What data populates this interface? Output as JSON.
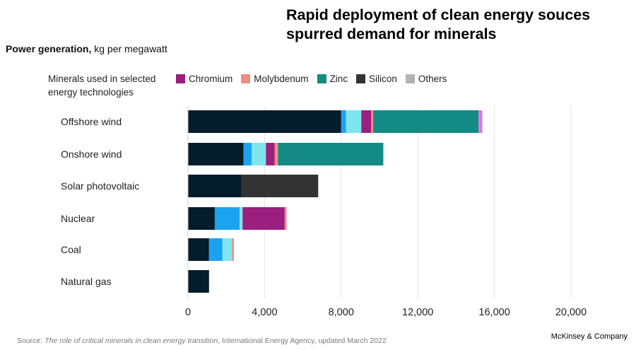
{
  "title": "Rapid deployment of clean energy souces spurred demand for minerals",
  "subtitle_bold": "Power generation,",
  "subtitle_rest": " kg per megawatt",
  "legend_title": "Minerals used in selected energy technologies",
  "legend": [
    {
      "name": "Chromium",
      "color": "#9b1f7e"
    },
    {
      "name": "Molybdenum",
      "color": "#f28b86"
    },
    {
      "name": "Zinc",
      "color": "#138a84"
    },
    {
      "name": "Silicon",
      "color": "#333333"
    },
    {
      "name": "Others",
      "color": "#b3b3b3"
    }
  ],
  "source_prefix": "Source: ",
  "source_title": "The role of critical minerals in clean energy transition",
  "source_rest": ", International Energy Agency, updated March 2022",
  "brand": "McKinsey & Company",
  "chart_data": {
    "type": "bar",
    "orientation": "horizontal",
    "stacked": true,
    "xlim": [
      0,
      20000
    ],
    "x_ticks": [
      0,
      4000,
      8000,
      12000,
      16000,
      20000
    ],
    "x_tick_labels": [
      "0",
      "4,000",
      "8,000",
      "12,000",
      "16,000",
      "20,000"
    ],
    "grid": "vertical",
    "categories": [
      "Offshore wind",
      "Onshore wind",
      "Solar photovoltaic",
      "Nuclear",
      "Coal",
      "Natural gas"
    ],
    "series": [
      {
        "color": "#051c2c",
        "values": [
          8000,
          2900,
          2800,
          1400,
          1100,
          1100
        ]
      },
      {
        "color": "#1ba3f0",
        "values": [
          250,
          420,
          0,
          1300,
          700,
          0
        ]
      },
      {
        "color": "#7ee6ec",
        "values": [
          800,
          750,
          0,
          150,
          500,
          0
        ]
      },
      {
        "name": "Chromium",
        "color": "#9b1f7e",
        "values": [
          520,
          450,
          0,
          2200,
          0,
          0
        ]
      },
      {
        "name": "Molybdenum",
        "color": "#f28b86",
        "values": [
          100,
          180,
          0,
          100,
          100,
          0
        ]
      },
      {
        "name": "Zinc",
        "color": "#138a84",
        "values": [
          5500,
          5500,
          0,
          0,
          0,
          0
        ]
      },
      {
        "name": "Silicon",
        "color": "#333333",
        "values": [
          0,
          0,
          4000,
          0,
          0,
          0
        ]
      },
      {
        "color": "#d77bdb",
        "values": [
          200,
          0,
          0,
          0,
          0,
          0
        ]
      }
    ]
  }
}
